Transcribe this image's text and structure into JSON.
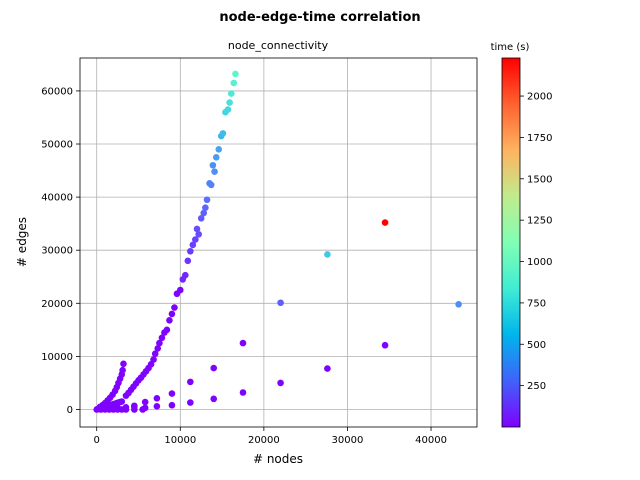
{
  "figure": {
    "suptitle": "node-edge-time correlation"
  },
  "chart_data": {
    "type": "scatter",
    "title": "node_connectivity",
    "xlabel": "# nodes",
    "ylabel": "# edges",
    "xlim": [
      -2000,
      45500
    ],
    "ylim": [
      -3300,
      66200
    ],
    "xticks": [
      0,
      10000,
      20000,
      30000,
      40000
    ],
    "yticks": [
      0,
      10000,
      20000,
      30000,
      40000,
      50000,
      60000
    ],
    "xtick_labels": [
      "0",
      "10000",
      "20000",
      "30000",
      "40000"
    ],
    "ytick_labels": [
      "0",
      "10000",
      "20000",
      "30000",
      "40000",
      "50000",
      "60000"
    ],
    "grid": true,
    "colorbar": {
      "title": "time (s)",
      "colormap": "rainbow",
      "range": [
        0,
        2230
      ],
      "ticks": [
        250,
        500,
        750,
        1000,
        1250,
        1500,
        1750,
        2000
      ],
      "tick_labels": [
        "250",
        "500",
        "750",
        "1000",
        "1250",
        "1500",
        "1750",
        "2000"
      ]
    },
    "points": [
      {
        "x": 0,
        "y": 0,
        "t": 5
      },
      {
        "x": 100,
        "y": 50,
        "t": 5
      },
      {
        "x": 200,
        "y": 100,
        "t": 5
      },
      {
        "x": 300,
        "y": 150,
        "t": 5
      },
      {
        "x": 400,
        "y": 200,
        "t": 5
      },
      {
        "x": 500,
        "y": 250,
        "t": 5
      },
      {
        "x": 600,
        "y": 300,
        "t": 5
      },
      {
        "x": 800,
        "y": 400,
        "t": 5
      },
      {
        "x": 1000,
        "y": 500,
        "t": 5
      },
      {
        "x": 1200,
        "y": 600,
        "t": 5
      },
      {
        "x": 1400,
        "y": 700,
        "t": 5
      },
      {
        "x": 1600,
        "y": 800,
        "t": 5
      },
      {
        "x": 1800,
        "y": 900,
        "t": 5
      },
      {
        "x": 2000,
        "y": 1000,
        "t": 5
      },
      {
        "x": 2200,
        "y": 1100,
        "t": 5
      },
      {
        "x": 2400,
        "y": 1200,
        "t": 5
      },
      {
        "x": 2600,
        "y": 1300,
        "t": 5
      },
      {
        "x": 2800,
        "y": 1400,
        "t": 5
      },
      {
        "x": 3000,
        "y": 1500,
        "t": 5
      },
      {
        "x": 500,
        "y": 0,
        "t": 5
      },
      {
        "x": 1000,
        "y": 0,
        "t": 5
      },
      {
        "x": 1500,
        "y": 0,
        "t": 5
      },
      {
        "x": 2000,
        "y": 0,
        "t": 5
      },
      {
        "x": 2500,
        "y": 0,
        "t": 5
      },
      {
        "x": 3000,
        "y": 0,
        "t": 5
      },
      {
        "x": 3500,
        "y": 0,
        "t": 5
      },
      {
        "x": 4500,
        "y": 0,
        "t": 5
      },
      {
        "x": 5500,
        "y": 0,
        "t": 5
      },
      {
        "x": 1500,
        "y": 200,
        "t": 5
      },
      {
        "x": 2500,
        "y": 300,
        "t": 5
      },
      {
        "x": 3500,
        "y": 400,
        "t": 5
      },
      {
        "x": 4500,
        "y": 500,
        "t": 5
      },
      {
        "x": 400,
        "y": 500,
        "t": 5
      },
      {
        "x": 700,
        "y": 800,
        "t": 5
      },
      {
        "x": 1000,
        "y": 1200,
        "t": 5
      },
      {
        "x": 1300,
        "y": 1700,
        "t": 5
      },
      {
        "x": 1600,
        "y": 2200,
        "t": 5
      },
      {
        "x": 1900,
        "y": 2800,
        "t": 5
      },
      {
        "x": 2200,
        "y": 3500,
        "t": 5
      },
      {
        "x": 2400,
        "y": 4200,
        "t": 5
      },
      {
        "x": 2600,
        "y": 5000,
        "t": 5
      },
      {
        "x": 2800,
        "y": 5800,
        "t": 5
      },
      {
        "x": 3000,
        "y": 6600,
        "t": 5
      },
      {
        "x": 3100,
        "y": 7400,
        "t": 5
      },
      {
        "x": 3200,
        "y": 8600,
        "t": 5
      },
      {
        "x": 3500,
        "y": 2600,
        "t": 5
      },
      {
        "x": 3800,
        "y": 3100,
        "t": 5
      },
      {
        "x": 4100,
        "y": 3700,
        "t": 5
      },
      {
        "x": 4400,
        "y": 4300,
        "t": 5
      },
      {
        "x": 4700,
        "y": 4900,
        "t": 5
      },
      {
        "x": 5000,
        "y": 5500,
        "t": 5
      },
      {
        "x": 5300,
        "y": 6000,
        "t": 5
      },
      {
        "x": 5600,
        "y": 6600,
        "t": 5
      },
      {
        "x": 5900,
        "y": 7200,
        "t": 5
      },
      {
        "x": 6200,
        "y": 7800,
        "t": 5
      },
      {
        "x": 6500,
        "y": 8500,
        "t": 5
      },
      {
        "x": 6800,
        "y": 9400,
        "t": 5
      },
      {
        "x": 7000,
        "y": 10500,
        "t": 5
      },
      {
        "x": 7300,
        "y": 11500,
        "t": 5
      },
      {
        "x": 7500,
        "y": 12500,
        "t": 5
      },
      {
        "x": 7800,
        "y": 13500,
        "t": 5
      },
      {
        "x": 8100,
        "y": 14500,
        "t": 5
      },
      {
        "x": 8400,
        "y": 15000,
        "t": 5
      },
      {
        "x": 8700,
        "y": 16800,
        "t": 5
      },
      {
        "x": 9000,
        "y": 18000,
        "t": 5
      },
      {
        "x": 9300,
        "y": 19200,
        "t": 5
      },
      {
        "x": 9600,
        "y": 21800,
        "t": 5
      },
      {
        "x": 10000,
        "y": 22500,
        "t": 5
      },
      {
        "x": 4500,
        "y": 700,
        "t": 5
      },
      {
        "x": 5800,
        "y": 1400,
        "t": 5
      },
      {
        "x": 7200,
        "y": 2100,
        "t": 5
      },
      {
        "x": 9000,
        "y": 3000,
        "t": 5
      },
      {
        "x": 5800,
        "y": 300,
        "t": 5
      },
      {
        "x": 7200,
        "y": 600,
        "t": 5
      },
      {
        "x": 9000,
        "y": 800,
        "t": 5
      },
      {
        "x": 11200,
        "y": 1300,
        "t": 5
      },
      {
        "x": 14000,
        "y": 2000,
        "t": 5
      },
      {
        "x": 17500,
        "y": 3200,
        "t": 5
      },
      {
        "x": 22000,
        "y": 5000,
        "t": 5
      },
      {
        "x": 27600,
        "y": 7700,
        "t": 5
      },
      {
        "x": 11200,
        "y": 5200,
        "t": 5
      },
      {
        "x": 14000,
        "y": 7800,
        "t": 5
      },
      {
        "x": 17500,
        "y": 12500,
        "t": 5
      },
      {
        "x": 34500,
        "y": 12100,
        "t": 5
      },
      {
        "x": 10300,
        "y": 24500,
        "t": 110
      },
      {
        "x": 10600,
        "y": 25300,
        "t": 110
      },
      {
        "x": 10900,
        "y": 28000,
        "t": 150
      },
      {
        "x": 11200,
        "y": 29800,
        "t": 170
      },
      {
        "x": 11500,
        "y": 31000,
        "t": 180
      },
      {
        "x": 11800,
        "y": 32000,
        "t": 190
      },
      {
        "x": 12000,
        "y": 34000,
        "t": 220
      },
      {
        "x": 12200,
        "y": 33000,
        "t": 220
      },
      {
        "x": 12500,
        "y": 36000,
        "t": 250
      },
      {
        "x": 12800,
        "y": 37000,
        "t": 270
      },
      {
        "x": 13000,
        "y": 38000,
        "t": 290
      },
      {
        "x": 13200,
        "y": 39500,
        "t": 320
      },
      {
        "x": 13500,
        "y": 42600,
        "t": 380
      },
      {
        "x": 13700,
        "y": 42300,
        "t": 380
      },
      {
        "x": 13900,
        "y": 46000,
        "t": 430
      },
      {
        "x": 14100,
        "y": 44800,
        "t": 430
      },
      {
        "x": 14300,
        "y": 47500,
        "t": 470
      },
      {
        "x": 14600,
        "y": 49000,
        "t": 500
      },
      {
        "x": 14900,
        "y": 51500,
        "t": 560
      },
      {
        "x": 15100,
        "y": 52000,
        "t": 580
      },
      {
        "x": 15400,
        "y": 56000,
        "t": 700
      },
      {
        "x": 15700,
        "y": 56500,
        "t": 720
      },
      {
        "x": 15900,
        "y": 57800,
        "t": 770
      },
      {
        "x": 16100,
        "y": 59500,
        "t": 820
      },
      {
        "x": 16400,
        "y": 61500,
        "t": 880
      },
      {
        "x": 16600,
        "y": 63200,
        "t": 930
      },
      {
        "x": 22000,
        "y": 20100,
        "t": 270
      },
      {
        "x": 27600,
        "y": 29200,
        "t": 640
      },
      {
        "x": 34500,
        "y": 35200,
        "t": 2230
      },
      {
        "x": 43300,
        "y": 19800,
        "t": 420
      }
    ]
  }
}
